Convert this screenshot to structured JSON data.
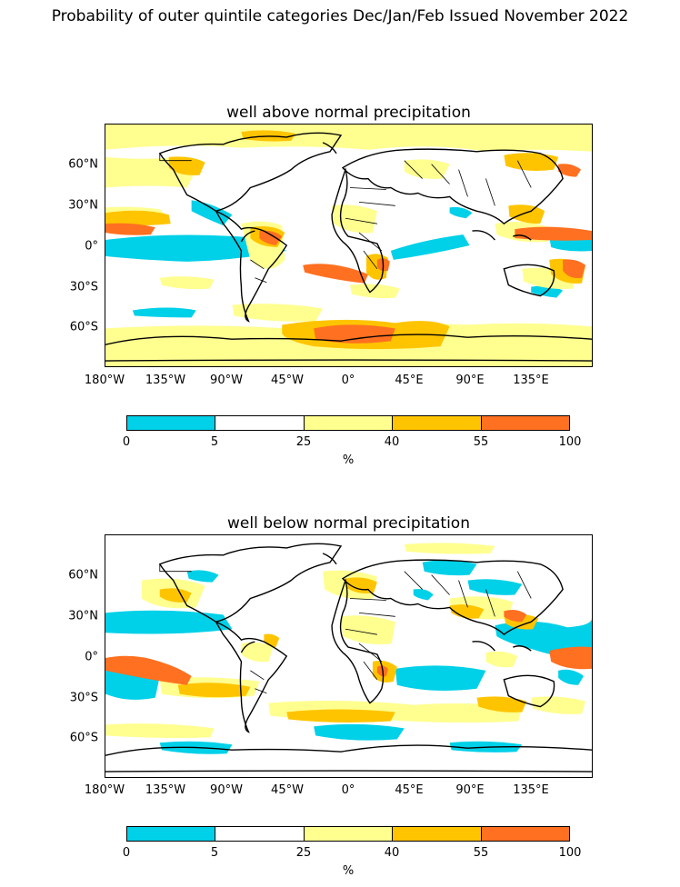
{
  "suptitle": "Probability of outer quintile categories Dec/Jan/Feb Issued November 2022",
  "panels": [
    {
      "title": "well above normal precipitation",
      "lat_labels": [
        "60°N",
        "30°N",
        "0°",
        "30°S",
        "60°S"
      ],
      "lon_labels": [
        "180°W",
        "135°W",
        "90°W",
        "45°W",
        "0°",
        "45°E",
        "90°E",
        "135°E"
      ]
    },
    {
      "title": "well below normal precipitation",
      "lat_labels": [
        "60°N",
        "30°N",
        "0°",
        "30°S",
        "60°S"
      ],
      "lon_labels": [
        "180°W",
        "135°W",
        "90°W",
        "45°W",
        "0°",
        "45°E",
        "90°E",
        "135°E"
      ]
    }
  ],
  "colorbar": {
    "ticks": [
      "0",
      "5",
      "25",
      "40",
      "55",
      "100"
    ],
    "unit": "%",
    "colors": [
      "#00d0e8",
      "#ffffff",
      "#ffff90",
      "#ffc400",
      "#ff7020"
    ]
  }
}
